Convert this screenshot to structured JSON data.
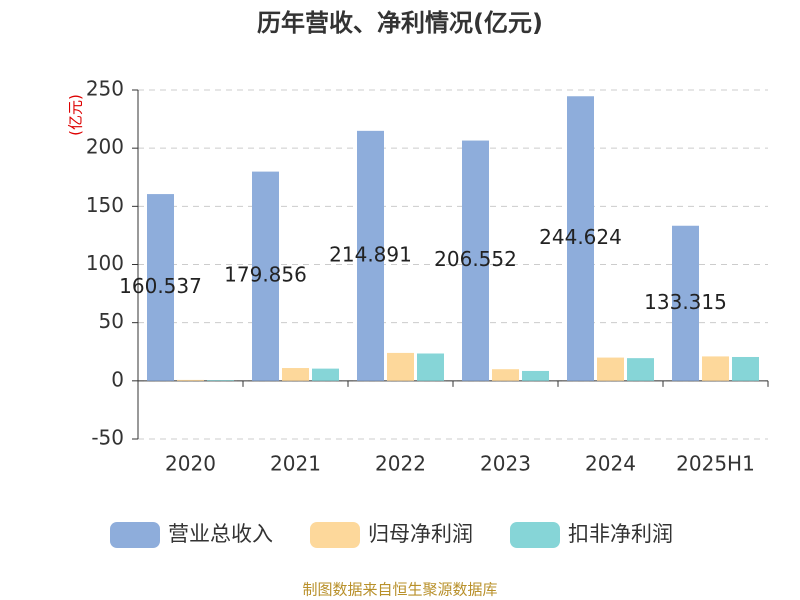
{
  "chart_data": {
    "type": "bar",
    "title": "历年营收、净利情况(亿元)",
    "y_label": "(亿元)",
    "categories": [
      "2020",
      "2021",
      "2022",
      "2023",
      "2024",
      "2025H1"
    ],
    "series": [
      {
        "name": "营业总收入",
        "color": "#8eaddb",
        "values": [
          160.537,
          179.856,
          214.891,
          206.552,
          244.624,
          133.315
        ],
        "show_labels": true
      },
      {
        "name": "归母净利润",
        "color": "#fdd89b",
        "values": [
          0.8,
          11,
          24,
          10,
          20,
          21
        ]
      },
      {
        "name": "扣非净利润",
        "color": "#86d5d7",
        "values": [
          0.6,
          10.5,
          23.5,
          8.5,
          19.5,
          20.5
        ]
      }
    ],
    "ylim": [
      -50,
      250
    ],
    "yticks": [
      -50,
      0,
      50,
      100,
      150,
      200,
      250
    ],
    "grid": true,
    "legend": "bottom",
    "source": "制图数据来自恒生聚源数据库"
  }
}
